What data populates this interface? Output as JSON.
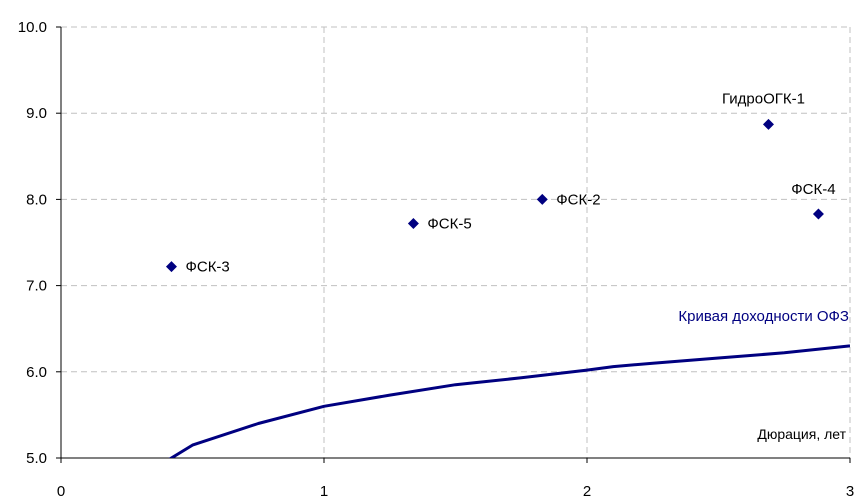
{
  "chart_data": {
    "type": "scatter",
    "xlabel": "Дюрация, лет",
    "ylabel": "",
    "xlim": [
      0,
      3
    ],
    "ylim": [
      5.0,
      10.0
    ],
    "x_ticks": [
      "0",
      "1",
      "2",
      "3"
    ],
    "y_ticks": [
      "5.0",
      "6.0",
      "7.0",
      "8.0",
      "9.0",
      "10.0"
    ],
    "grid": true,
    "points": [
      {
        "label": "ФСК-3",
        "x": 0.42,
        "y": 7.22
      },
      {
        "label": "ФСК-5",
        "x": 1.34,
        "y": 7.72
      },
      {
        "label": "ФСК-2",
        "x": 1.83,
        "y": 8.0
      },
      {
        "label": "ГидроОГК-1",
        "x": 2.69,
        "y": 8.87
      },
      {
        "label": "ФСК-4",
        "x": 2.88,
        "y": 7.83
      }
    ],
    "series": [
      {
        "name": "Кривая доходности ОФЗ",
        "type": "line",
        "x": [
          0.35,
          0.5,
          0.75,
          1.0,
          1.25,
          1.5,
          1.75,
          2.0,
          2.1,
          2.25,
          2.5,
          2.75,
          3.0
        ],
        "y": [
          4.87,
          5.15,
          5.4,
          5.6,
          5.73,
          5.85,
          5.93,
          6.02,
          6.06,
          6.1,
          6.16,
          6.22,
          6.3
        ]
      }
    ],
    "colors": {
      "points": "#000080",
      "curve": "#000080",
      "curve_label": "#000080",
      "grid": "#c0c0c0",
      "axis": "#000000"
    }
  }
}
